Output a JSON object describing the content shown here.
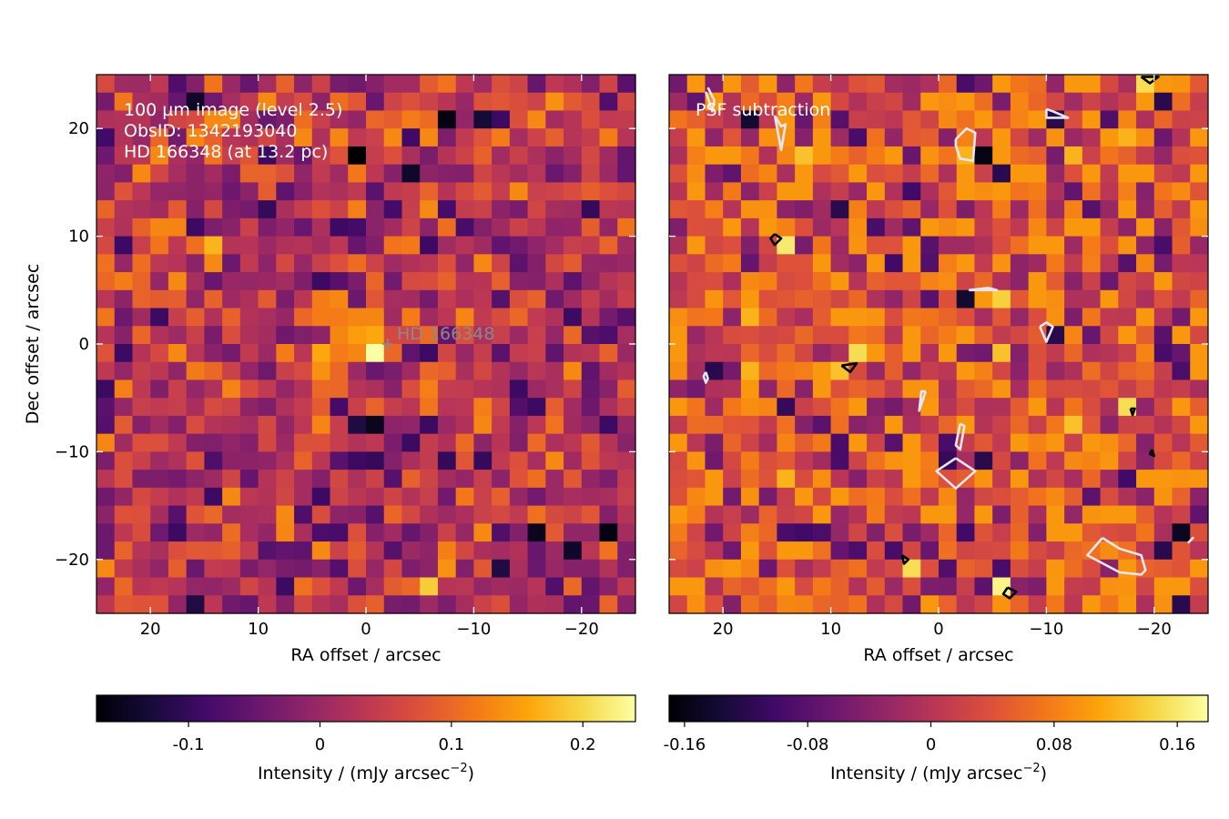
{
  "chart_data": [
    {
      "type": "heatmap",
      "panel": "left",
      "title": "",
      "annotations": [
        "100 µm image (level 2.5)",
        "ObsID: 1342193040",
        "HD 166348 (at 13.2 pc)"
      ],
      "star": {
        "label": "HD 166348",
        "ra": -2,
        "dec": 0
      },
      "xlabel": "RA offset / arcsec",
      "ylabel": "Dec offset / arcsec",
      "xlim": [
        25,
        -25
      ],
      "ylim": [
        -25,
        25
      ],
      "xticks": [
        20,
        10,
        0,
        -10,
        -20
      ],
      "xtick_labels": [
        "20",
        "10",
        "0",
        "−10",
        "−20"
      ],
      "yticks": [
        20,
        10,
        0,
        -10,
        -20
      ],
      "ytick_labels": [
        "20",
        "10",
        "0",
        "−10",
        "−20"
      ],
      "pixel_size_arcsec": 1.6667,
      "grid_n": 30,
      "colormap": "inferno",
      "color_range": [
        -0.17,
        0.24
      ],
      "bright_features": [
        {
          "ra": 0,
          "dec": 0,
          "value": 0.24
        },
        {
          "ra": 1.5,
          "dec": 1.5,
          "value": 0.15
        },
        {
          "ra": -1.5,
          "dec": 1.5,
          "value": 0.14
        },
        {
          "ra": 1.5,
          "dec": -1.5,
          "value": 0.13
        },
        {
          "ra": 1.5,
          "dec": 3,
          "value": 0.13
        },
        {
          "ra": 8,
          "dec": -1.5,
          "value": 0.14
        },
        {
          "ra": 14.5,
          "dec": 9.5,
          "value": 0.17
        },
        {
          "ra": -6,
          "dec": -22.5,
          "value": 0.19
        },
        {
          "ra": 3.5,
          "dec": 0,
          "value": 0.12
        },
        {
          "ra": 3.3,
          "dec": 1.6,
          "value": 0.13
        },
        {
          "ra": 3.3,
          "dec": -1.6,
          "value": 0.12
        },
        {
          "ra": 3.3,
          "dec": 3.3,
          "value": 0.12
        },
        {
          "ra": 0,
          "dec": 1.6,
          "value": 0.16
        },
        {
          "ra": 0,
          "dec": 3.3,
          "value": 0.13
        },
        {
          "ra": -3.3,
          "dec": 0,
          "value": 0.1
        },
        {
          "ra": 3.3,
          "dec": -3.3,
          "value": 0.1
        },
        {
          "ra": 6.7,
          "dec": -1.6,
          "value": 0.12
        },
        {
          "ra": 3.5,
          "dec": -3.3,
          "value": 0.14
        },
        {
          "ra": 3.5,
          "dec": 3.3,
          "value": 0.14
        },
        {
          "ra": 5.0,
          "dec": 1.7,
          "value": 0.12
        },
        {
          "ra": 3.5,
          "dec": 0,
          "value": 0.16
        },
        {
          "ra": -3.5,
          "dec": 1.7,
          "value": 0.12
        },
        {
          "ra": -5,
          "dec": -3.3,
          "value": 0.1
        },
        {
          "ra": 14.5,
          "dec": -1.7,
          "value": 0.1
        },
        {
          "ra": -6.7,
          "dec": -20,
          "value": 0.14
        },
        {
          "ra": -11.7,
          "dec": 20,
          "value": 0.12
        },
        {
          "ra": -18.3,
          "dec": 23.3,
          "value": 0.14
        },
        {
          "ra": -21.7,
          "dec": 20,
          "value": 0.12
        },
        {
          "ra": 3.3,
          "dec": 20,
          "value": 0.13
        }
      ],
      "dark_features": [
        {
          "ra": 16.5,
          "dec": 22.5,
          "value": -0.14
        },
        {
          "ra": -8,
          "dec": 21,
          "value": -0.16
        },
        {
          "ra": -10,
          "dec": 21,
          "value": -0.13
        },
        {
          "ra": 1.5,
          "dec": 17.5,
          "value": -0.17
        },
        {
          "ra": -3.5,
          "dec": 16,
          "value": -0.14
        },
        {
          "ra": -1.5,
          "dec": -7.5,
          "value": -0.15
        },
        {
          "ra": -1.5,
          "dec": -11,
          "value": -0.13
        },
        {
          "ra": -15,
          "dec": -17.5,
          "value": -0.15
        },
        {
          "ra": -18.5,
          "dec": -19,
          "value": -0.14
        },
        {
          "ra": -22,
          "dec": -17.5,
          "value": -0.16
        },
        {
          "ra": 1.5,
          "dec": -8,
          "value": -0.12
        },
        {
          "ra": 16.5,
          "dec": -24,
          "value": -0.12
        },
        {
          "ra": -11.7,
          "dec": -20,
          "value": -0.12
        },
        {
          "ra": -10,
          "dec": -10,
          "value": -0.1
        },
        {
          "ra": 10,
          "dec": 11.7,
          "value": -0.1
        },
        {
          "ra": -20,
          "dec": 11.7,
          "value": -0.1
        },
        {
          "ra": 0,
          "dec": -10,
          "value": -0.1
        },
        {
          "ra": -6.7,
          "dec": -10,
          "value": -0.1
        }
      ],
      "colorbar": {
        "ticks": [
          -0.1,
          0,
          0.1,
          0.2
        ],
        "tick_labels": [
          "-0.1",
          "0",
          "0.1",
          "0.2"
        ],
        "range": [
          -0.17,
          0.24
        ],
        "label": "Intensity / (mJy arcsec",
        "label_sup": "−2",
        "label_close": ")"
      }
    },
    {
      "type": "heatmap",
      "panel": "right",
      "title": "",
      "annotations": [
        "PSF subtraction"
      ],
      "xlabel": "RA offset / arcsec",
      "ylabel": "",
      "xlim": [
        25,
        -25
      ],
      "ylim": [
        -25,
        25
      ],
      "xticks": [
        20,
        10,
        0,
        -10,
        -20
      ],
      "xtick_labels": [
        "20",
        "10",
        "0",
        "−10",
        "−20"
      ],
      "pixel_size_arcsec": 1.6667,
      "grid_n": 30,
      "colormap": "inferno",
      "color_range": [
        -0.17,
        0.18
      ],
      "bright_features": [
        {
          "ra": 15,
          "dec": 10,
          "value": 0.16
        },
        {
          "ra": 8,
          "dec": -1.5,
          "value": 0.15
        },
        {
          "ra": 3,
          "dec": -20.5,
          "value": 0.15
        },
        {
          "ra": -6.5,
          "dec": -22.5,
          "value": 0.17
        },
        {
          "ra": -18,
          "dec": -6.5,
          "value": 0.15
        },
        {
          "ra": -18.5,
          "dec": 24,
          "value": 0.15
        },
        {
          "ra": -6.5,
          "dec": 3.5,
          "value": 0.14
        },
        {
          "ra": -6.5,
          "dec": -1.5,
          "value": 0.13
        },
        {
          "ra": -13.3,
          "dec": -6.7,
          "value": 0.13
        },
        {
          "ra": 18.3,
          "dec": 1.7,
          "value": 0.12
        },
        {
          "ra": 16.7,
          "dec": -3.3,
          "value": 0.12
        },
        {
          "ra": 15,
          "dec": -13.3,
          "value": 0.12
        },
        {
          "ra": 11.7,
          "dec": 16.7,
          "value": 0.13
        },
        {
          "ra": 10,
          "dec": -3.3,
          "value": 0.13
        },
        {
          "ra": -21.7,
          "dec": -21.7,
          "value": 0.1
        },
        {
          "ra": -3.3,
          "dec": 18.3,
          "value": 0.12
        },
        {
          "ra": -13.3,
          "dec": 16.7,
          "value": 0.12
        },
        {
          "ra": -16.7,
          "dec": 20,
          "value": 0.12
        }
      ],
      "dark_features": [
        {
          "ra": 17.5,
          "dec": 20.5,
          "value": -0.14
        },
        {
          "ra": -2,
          "dec": 18,
          "value": -0.16
        },
        {
          "ra": -3.5,
          "dec": 18,
          "value": -0.16
        },
        {
          "ra": -6,
          "dec": 16,
          "value": -0.12
        },
        {
          "ra": -10,
          "dec": 21.5,
          "value": -0.12
        },
        {
          "ra": -21.5,
          "dec": 22,
          "value": -0.12
        },
        {
          "ra": -3,
          "dec": 5,
          "value": -0.14
        },
        {
          "ra": -5,
          "dec": 5,
          "value": -0.12
        },
        {
          "ra": -10,
          "dec": 1.5,
          "value": -0.12
        },
        {
          "ra": -3.5,
          "dec": -11,
          "value": -0.12
        },
        {
          "ra": -1.5,
          "dec": -11,
          "value": -0.11
        },
        {
          "ra": -20,
          "dec": -19,
          "value": -0.12
        },
        {
          "ra": -23,
          "dec": -18,
          "value": -0.15
        },
        {
          "ra": 21.5,
          "dec": -3,
          "value": -0.12
        },
        {
          "ra": 15,
          "dec": -5.5,
          "value": -0.11
        },
        {
          "ra": -23,
          "dec": -24,
          "value": -0.12
        },
        {
          "ra": 1.7,
          "dec": 15,
          "value": -0.1
        },
        {
          "ra": 10,
          "dec": 11.7,
          "value": -0.12
        },
        {
          "ra": 5,
          "dec": 6.7,
          "value": -0.1
        },
        {
          "ra": -1.7,
          "dec": -16.7,
          "value": -0.1
        },
        {
          "ra": 13.3,
          "dec": -18.3,
          "value": -0.1
        },
        {
          "ra": -16.7,
          "dec": -11.7,
          "value": -0.1
        }
      ],
      "contours": [
        {
          "level": "negative",
          "color": "#e6e6f2",
          "points": [
            [
              21.6,
              23.4
            ],
            [
              21.0,
              21.6
            ],
            [
              20.8,
              22.6
            ],
            [
              21.4,
              23.8
            ]
          ]
        },
        {
          "level": "negative",
          "color": "#e6e6f2",
          "points": [
            [
              15.2,
              21.2
            ],
            [
              14.6,
              20.2
            ],
            [
              14.2,
              20.4
            ],
            [
              14.6,
              18.0
            ],
            [
              15.2,
              21.2
            ]
          ]
        },
        {
          "level": "negative",
          "color": "#e6e6f2",
          "points": [
            [
              -10.0,
              21.8
            ],
            [
              -10.6,
              21.6
            ],
            [
              -12.0,
              21.0
            ],
            [
              -10.0,
              21.0
            ],
            [
              -10.0,
              21.8
            ]
          ]
        },
        {
          "level": "negative",
          "color": "#e6e6f2",
          "points": [
            [
              -1.6,
              19.0
            ],
            [
              -2.6,
              20.0
            ],
            [
              -3.4,
              19.6
            ],
            [
              -3.2,
              17.0
            ],
            [
              -2.0,
              17.2
            ],
            [
              -1.6,
              18.4
            ],
            [
              -1.6,
              19.0
            ]
          ]
        },
        {
          "level": "negative",
          "color": "#e6e6f2",
          "points": [
            [
              -2.8,
              5.0
            ],
            [
              -4.6,
              5.2
            ],
            [
              -5.4,
              5.0
            ],
            [
              -2.8,
              5.0
            ]
          ]
        },
        {
          "level": "negative",
          "color": "#e6e6f2",
          "points": [
            [
              -9.4,
              1.6
            ],
            [
              -10.0,
              2.0
            ],
            [
              -10.6,
              1.6
            ],
            [
              -10.0,
              0.2
            ],
            [
              -9.4,
              1.6
            ]
          ]
        },
        {
          "level": "negative",
          "color": "#e6e6f2",
          "points": [
            [
              1.2,
              -4.4
            ],
            [
              1.6,
              -4.4
            ],
            [
              1.8,
              -6.2
            ],
            [
              1.2,
              -4.4
            ]
          ]
        },
        {
          "level": "negative",
          "color": "#e6e6f2",
          "points": [
            [
              -2.0,
              -7.4
            ],
            [
              -2.4,
              -7.6
            ],
            [
              -2.0,
              -9.8
            ],
            [
              -1.6,
              -9.4
            ],
            [
              -2.0,
              -7.4
            ]
          ]
        },
        {
          "level": "negative",
          "color": "#e6e6f2",
          "points": [
            [
              -1.6,
              -10.6
            ],
            [
              -3.4,
              -11.8
            ],
            [
              -1.6,
              -13.4
            ],
            [
              0.2,
              -11.8
            ],
            [
              -1.6,
              -10.6
            ]
          ]
        },
        {
          "level": "negative",
          "color": "#e6e6f2",
          "points": [
            [
              -15.2,
              -18.0
            ],
            [
              -16.8,
              -19.0
            ],
            [
              -18.8,
              -19.6
            ],
            [
              -19.2,
              -21.0
            ],
            [
              -18.8,
              -21.4
            ],
            [
              -16.8,
              -21.2
            ],
            [
              -13.8,
              -19.6
            ],
            [
              -15.2,
              -18.0
            ]
          ]
        },
        {
          "level": "negative",
          "color": "#e6e6f2",
          "points": [
            [
              -23.4,
              -18.2
            ],
            [
              -23.2,
              -18.4
            ],
            [
              -23.6,
              -18.0
            ],
            [
              -23.4,
              -18.2
            ]
          ]
        },
        {
          "level": "negative",
          "color": "#e6e6f2",
          "points": [
            [
              21.6,
              -2.6
            ],
            [
              21.4,
              -3.2
            ],
            [
              21.6,
              -3.6
            ],
            [
              21.8,
              -3.0
            ],
            [
              21.6,
              -2.6
            ]
          ]
        },
        {
          "level": "positive",
          "color": "#000000",
          "points": [
            [
              15.2,
              10.2
            ],
            [
              14.6,
              9.8
            ],
            [
              15.2,
              9.2
            ],
            [
              15.6,
              9.8
            ],
            [
              15.2,
              10.2
            ]
          ]
        },
        {
          "level": "positive",
          "color": "#000000",
          "points": [
            [
              9.0,
              -2.0
            ],
            [
              7.6,
              -1.8
            ],
            [
              8.2,
              -2.6
            ],
            [
              9.0,
              -2.0
            ]
          ]
        },
        {
          "level": "positive",
          "color": "#000000",
          "points": [
            [
              -17.8,
              -6.0
            ],
            [
              -18.0,
              -6.6
            ],
            [
              -18.2,
              -6.0
            ],
            [
              -17.8,
              -6.0
            ]
          ]
        },
        {
          "level": "positive",
          "color": "#000000",
          "points": [
            [
              3.4,
              -19.6
            ],
            [
              2.8,
              -20.0
            ],
            [
              3.2,
              -20.4
            ],
            [
              3.4,
              -19.6
            ]
          ]
        },
        {
          "level": "positive",
          "color": "#000000",
          "points": [
            [
              -6.4,
              -22.6
            ],
            [
              -7.2,
              -23.0
            ],
            [
              -6.6,
              -23.6
            ],
            [
              -6.0,
              -23.2
            ],
            [
              -6.4,
              -22.6
            ]
          ]
        },
        {
          "level": "positive",
          "color": "#000000",
          "points": [
            [
              -19.8,
              -9.8
            ],
            [
              -20.0,
              -10.4
            ],
            [
              -19.6,
              -10.2
            ],
            [
              -19.8,
              -9.8
            ]
          ]
        },
        {
          "level": "positive",
          "color": "#000000",
          "points": [
            [
              -18.8,
              24.8
            ],
            [
              -20.4,
              24.8
            ],
            [
              -19.6,
              24.2
            ],
            [
              -18.8,
              24.8
            ]
          ]
        }
      ],
      "colorbar": {
        "ticks": [
          -0.16,
          -0.08,
          0,
          0.08,
          0.16
        ],
        "tick_labels": [
          "-0.16",
          "-0.08",
          "0",
          "0.08",
          "0.16"
        ],
        "range": [
          -0.17,
          0.18
        ],
        "label": "Intensity / (mJy arcsec",
        "label_sup": "−2",
        "label_close": ")"
      }
    }
  ]
}
